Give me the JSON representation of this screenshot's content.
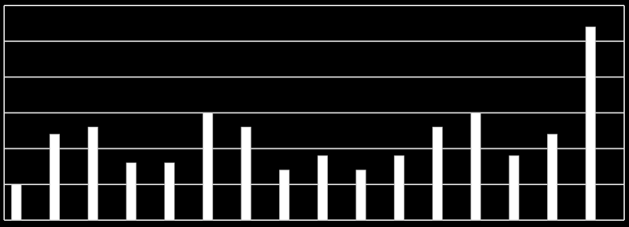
{
  "chart_data": {
    "type": "bar",
    "categories": [
      null,
      null,
      null,
      null,
      null,
      null,
      null,
      null,
      null,
      null,
      null,
      null,
      null,
      null,
      null,
      null
    ],
    "values": [
      1.0,
      2.4,
      2.6,
      1.6,
      1.6,
      3.0,
      2.6,
      1.4,
      1.8,
      1.4,
      1.8,
      2.6,
      3.0,
      1.8,
      2.4,
      5.4
    ],
    "color": "#ffffff",
    "ylim": [
      0,
      6
    ],
    "yticks": [
      0,
      1,
      2,
      3,
      4,
      5,
      6
    ],
    "grid": true
  }
}
